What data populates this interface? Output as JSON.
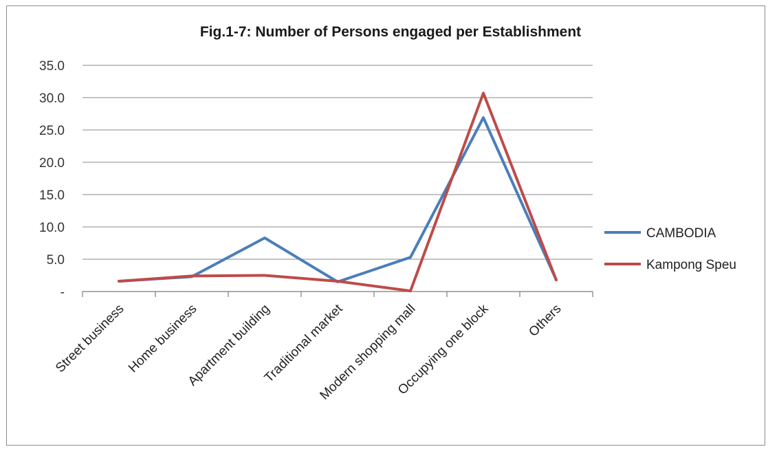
{
  "chart_data": {
    "type": "line",
    "title": "Fig.1-7:  Number of Persons engaged per Establishment",
    "xlabel": "",
    "ylabel": "",
    "categories": [
      "Street business",
      "Home business",
      "Apartment building",
      "Traditional market",
      "Modern shopping mall",
      "Occupying one block",
      "Others"
    ],
    "ylim": [
      0,
      35
    ],
    "yticks": [
      0,
      5,
      10,
      15,
      20,
      25,
      30,
      35
    ],
    "ytick_labels": [
      "-",
      "5.0",
      "10.0",
      "15.0",
      "20.0",
      "25.0",
      "30.0",
      "35.0"
    ],
    "grid": true,
    "legend_position": "right",
    "series": [
      {
        "name": "CAMBODIA",
        "color": "#4a7ebb",
        "values": [
          1.6,
          2.3,
          8.3,
          1.5,
          5.3,
          26.9,
          1.8
        ]
      },
      {
        "name": "Kampong Speu",
        "color": "#be4b48",
        "values": [
          1.6,
          2.4,
          2.5,
          1.6,
          0.1,
          30.7,
          1.8
        ]
      }
    ]
  }
}
